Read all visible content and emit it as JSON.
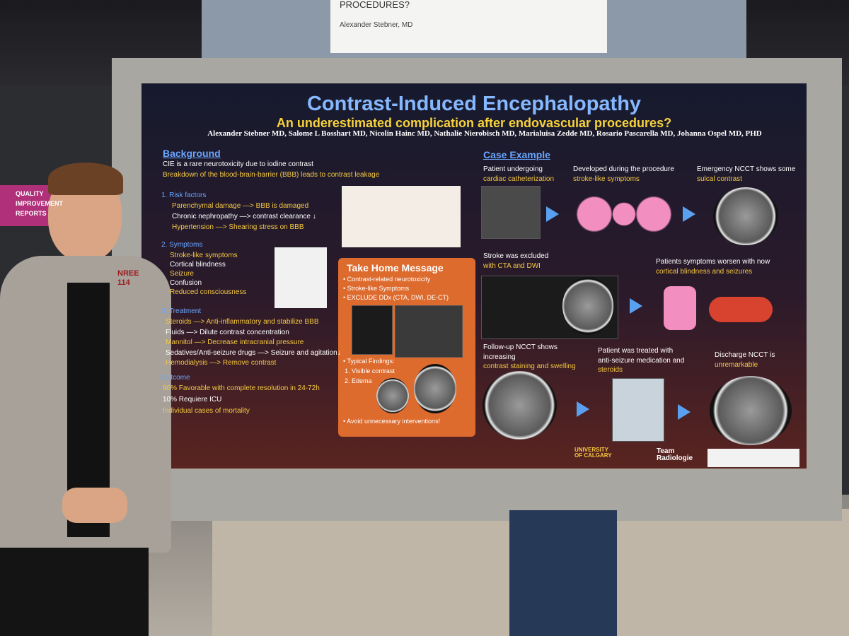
{
  "sign": {
    "title": "PROCEDURES?",
    "author": "Alexander Stebner, MD"
  },
  "booth": {
    "side_sign": [
      "QUALITY",
      "IMPROVEMENT",
      "REPORTS"
    ],
    "board_number": [
      "NREE",
      "114"
    ]
  },
  "poster": {
    "title": "Contrast-Induced Encephalopathy",
    "subtitle": "An underestimated complication after endovascular procedures?",
    "authors": "Alexander Stebner MD, Salome L Bosshart MD, Nicolin Hainc MD, Nathalie Nierobisch MD, Marialuisa Zedde MD, Rosario Pascarella MD, Johanna Ospel MD, PHD",
    "background": {
      "heading": "Background",
      "lines": [
        "CIE is a rare neurotoxicity due to iodine contrast",
        "Breakdown of the blood-brain-barrier (BBB) leads to contrast leakage"
      ]
    },
    "risk_factors": {
      "heading": "1. Risk factors",
      "items": [
        "Parenchymal damage —> BBB is damaged",
        "Chronic nephropathy —> contrast clearance ↓",
        "Hypertension —> Shearing stress on BBB"
      ]
    },
    "symptoms": {
      "heading": "2. Symptoms",
      "items": [
        "Stroke-like symptoms",
        "Cortical blindness",
        "Seizure",
        "Confusion",
        "Reduced consciousness"
      ]
    },
    "treatment": {
      "heading": "3. Treatment",
      "items": [
        "Steroids —> Anti-inflammatory and stabilize BBB",
        "Fluids —> Dilute contrast concentration",
        "Mannitol —> Decrease intracranial pressure",
        "Sedatives/Anti-seizure drugs —> Seizure and agitation↓",
        "Hemodialysis —> Remove contrast"
      ]
    },
    "outcome": {
      "heading": "Outcome",
      "items": [
        "90% Favorable with complete resolution in 24-72h",
        "10% Requiere ICU",
        "Individual cases of mortality"
      ]
    },
    "take_home": {
      "heading": "Take Home Message",
      "items": [
        "• Contrast-related neurotoxicity",
        "• Stroke-like Symptoms",
        "• EXCLUDE DDx (CTA, DWI, DE-CT)"
      ],
      "findings_heading": "• Typical Findings:",
      "findings": [
        "1.  Visible contrast",
        "2.  Edema"
      ],
      "note": "• Avoid unnecessary interventions!"
    },
    "case": {
      "heading": "Case Example",
      "captions": [
        [
          "Patient undergoing",
          "cardiac catheterization"
        ],
        [
          "Developed during the procedure",
          "stroke-like symptoms"
        ],
        [
          "Emergency NCCT shows some",
          "sulcal contrast"
        ],
        [
          "Stroke was excluded",
          "with CTA and DWI"
        ],
        [
          "Patients symptoms worsen with now",
          "cortical blindness and seizures"
        ],
        [
          "Follow-up NCCT shows",
          "increasing",
          "contrast staining and swelling"
        ],
        [
          "Patient was treated with",
          "anti-seizure medication and",
          "steroids"
        ],
        [
          "Discharge NCCT is",
          "unremarkable"
        ]
      ]
    },
    "logos": [
      "UNIVERSITY OF CALGARY",
      "Team Radiologie"
    ]
  }
}
